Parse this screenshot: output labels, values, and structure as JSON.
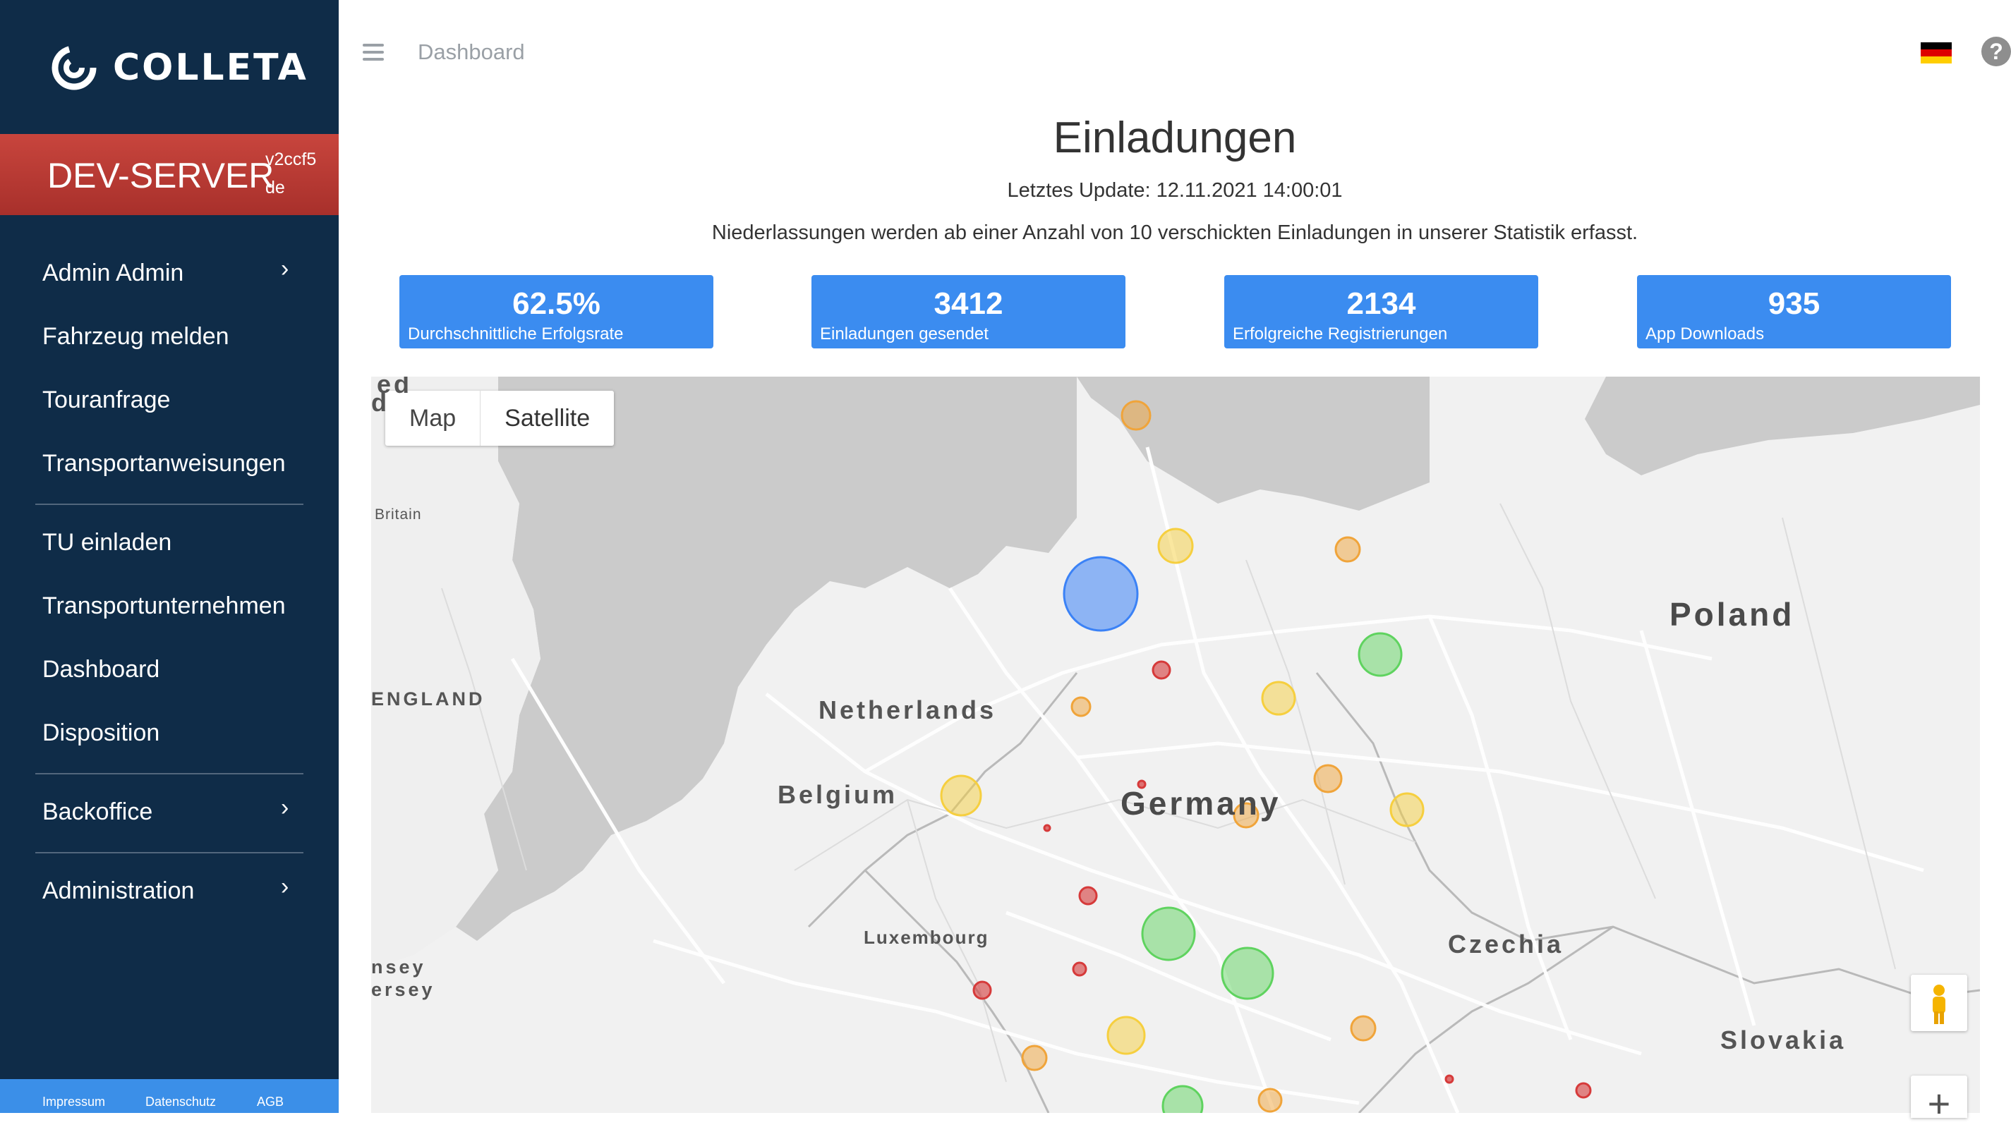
{
  "sidebar": {
    "brand": "COLLETA",
    "server": {
      "name": "DEV-SERVER",
      "version": "v2ccf5",
      "lang": "de"
    },
    "nav": [
      {
        "label": "Admin Admin",
        "chevron": true
      },
      {
        "label": "Fahrzeug melden"
      },
      {
        "label": "Touranfrage"
      },
      {
        "label": "Transportanweisungen"
      },
      {
        "label": "TU einladen"
      },
      {
        "label": "Transportunternehmen"
      },
      {
        "label": "Dashboard"
      },
      {
        "label": "Disposition"
      },
      {
        "label": "Backoffice",
        "chevron": true
      },
      {
        "label": "Administration",
        "chevron": true
      }
    ],
    "chevron_glyph": "›",
    "footer": {
      "impressum": "Impressum",
      "datenschutz": "Datenschutz",
      "agb": "AGB"
    }
  },
  "header": {
    "breadcrumb": "Dashboard",
    "help": "?",
    "flag": "german-flag-icon"
  },
  "main": {
    "title": "Einladungen",
    "last_update": "Letztes Update: 12.11.2021 14:00:01",
    "note": "Niederlassungen werden ab einer Anzahl von 10 verschickten Einladungen in unserer Statistik erfasst.",
    "stats": [
      {
        "value": "62.5%",
        "label": "Durchschnittliche Erfolgsrate"
      },
      {
        "value": "3412",
        "label": "Einladungen gesendet"
      },
      {
        "value": "2134",
        "label": "Erfolgreiche Registrierungen"
      },
      {
        "value": "935",
        "label": "App Downloads"
      }
    ]
  },
  "map": {
    "type_map": "Map",
    "type_satellite": "Satellite",
    "labels": {
      "poland": "Poland",
      "netherlands": "Netherlands",
      "germany": "Germany",
      "belgium": "Belgium",
      "luxembourg": "Luxembourg",
      "czechia": "Czechia",
      "slovakia": "Slovakia",
      "england": "ENGLAND",
      "britain": "Britain",
      "jersey_1": "nsey",
      "jersey_2": "ersey",
      "top_fragment_1": "ed",
      "top_fragment_2": "d"
    },
    "zoom_in": "+",
    "colors": {
      "blue": "#3b82f6",
      "green": "#5fd35f",
      "yellow": "#f6cf3f",
      "orange": "#f0a43a",
      "red": "#d63a3a"
    }
  }
}
